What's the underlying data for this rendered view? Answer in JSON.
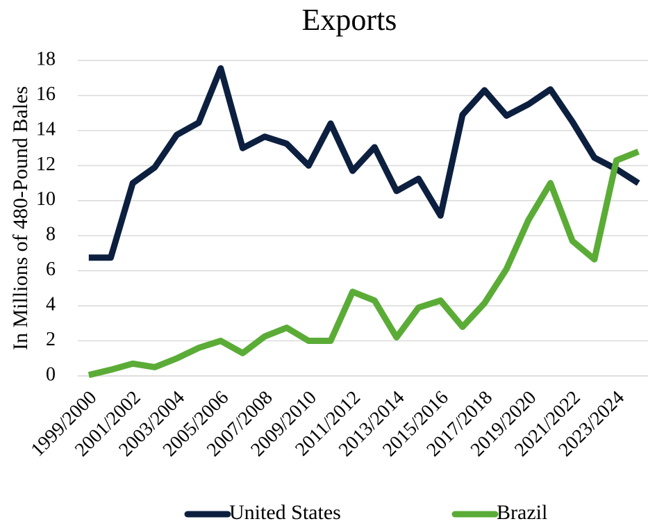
{
  "chart_data": {
    "type": "line",
    "title": "Exports",
    "y_label": "In Millions of 480-Pound Bales",
    "categories": [
      "1999/2000",
      null,
      "2001/2002",
      null,
      "2003/2004",
      null,
      "2005/2006",
      null,
      "2007/2008",
      null,
      "2009/2010",
      null,
      "2011/2012",
      null,
      "2013/2014",
      null,
      "2015/2016",
      null,
      "2017/2018",
      null,
      "2019/2020",
      null,
      "2021/2022",
      null,
      "2023/2024",
      null
    ],
    "series": [
      {
        "name": "United States",
        "color": "#0c1f3f",
        "values": [
          6.75,
          6.75,
          11.0,
          11.9,
          13.75,
          14.45,
          17.55,
          13.0,
          13.65,
          13.25,
          12.0,
          14.4,
          11.7,
          13.05,
          10.55,
          11.25,
          9.15,
          14.9,
          16.3,
          14.85,
          15.5,
          16.35,
          14.5,
          12.45,
          11.8,
          11.0
        ]
      },
      {
        "name": "Brazil",
        "color": "#5aac36",
        "values": [
          0.05,
          0.35,
          0.7,
          0.5,
          1.0,
          1.6,
          2.0,
          1.3,
          2.25,
          2.75,
          2.0,
          2.0,
          4.8,
          4.3,
          2.2,
          3.9,
          4.3,
          2.8,
          4.15,
          6.1,
          8.9,
          11.0,
          7.7,
          6.65,
          12.3,
          12.8
        ]
      }
    ],
    "ylim": [
      0,
      18
    ],
    "yticks": [
      0,
      2,
      4,
      6,
      8,
      10,
      12,
      14,
      16,
      18
    ],
    "grid": true,
    "legend": "bottom"
  }
}
